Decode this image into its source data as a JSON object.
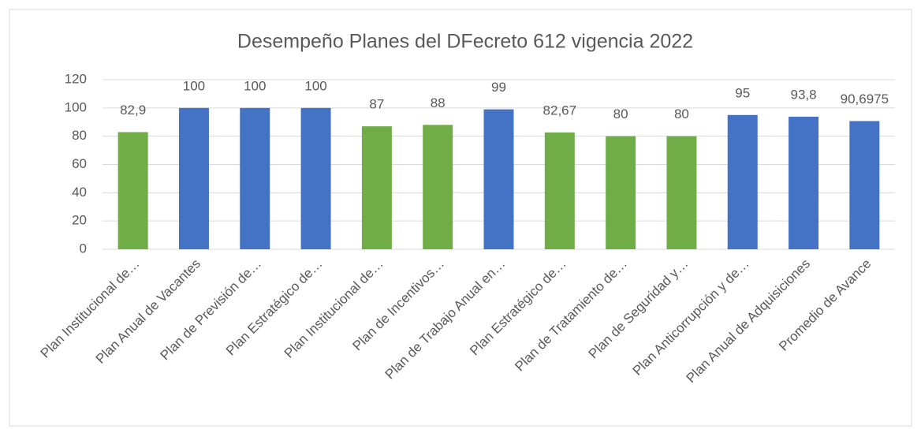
{
  "chart_data": {
    "type": "bar",
    "title": "Desempeño Planes del DFecreto 612 vigencia 2022",
    "categories": [
      "Plan Institucional de…",
      "Plan Anual de Vacantes",
      "Plan de Previsión de…",
      "Plan Estratégico de…",
      "Plan Institucional de…",
      "Plan de Incentivos…",
      "Plan de Trabajo Anual en…",
      "Plan Estratégico de…",
      "Plan de Tratamiento de…",
      "Plan de Seguridad y…",
      "Plan Anticorrupción y de…",
      "Plan Anual de Adquisiciones",
      "Promedio de Avance"
    ],
    "values": [
      82.9,
      100,
      100,
      100,
      87,
      88,
      99,
      82.67,
      80,
      80,
      95,
      93.8,
      90.6975
    ],
    "value_labels": [
      "82,9",
      "100",
      "100",
      "100",
      "87",
      "88",
      "99",
      "82,67",
      "80",
      "80",
      "95",
      "93,8",
      "90,6975"
    ],
    "colors": [
      "#70ad47",
      "#4472c4",
      "#4472c4",
      "#4472c4",
      "#70ad47",
      "#70ad47",
      "#4472c4",
      "#70ad47",
      "#70ad47",
      "#70ad47",
      "#4472c4",
      "#4472c4",
      "#4472c4"
    ],
    "ylim": [
      0,
      120
    ],
    "yticks": [
      0,
      20,
      40,
      60,
      80,
      100,
      120
    ],
    "grid": true
  }
}
